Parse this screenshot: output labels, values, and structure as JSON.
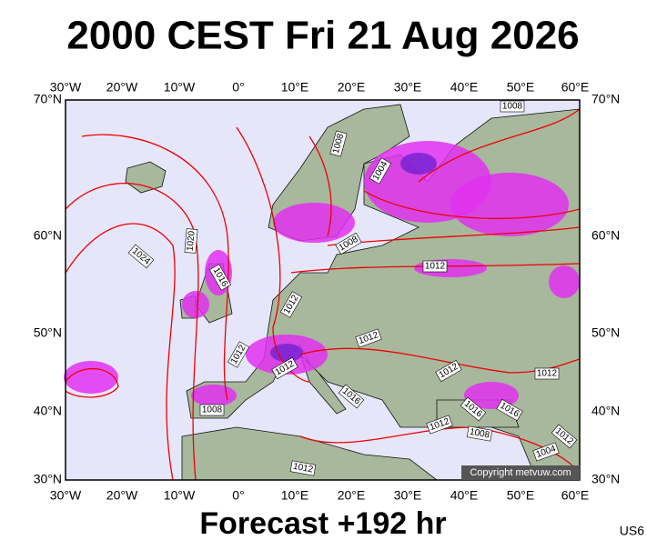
{
  "header": {
    "title": "2000 CEST Fri 21 Aug 2026"
  },
  "map": {
    "lon_labels": [
      "30°W",
      "20°W",
      "10°W",
      "0°",
      "10°E",
      "20°E",
      "30°E",
      "40°E",
      "50°E",
      "60°E"
    ],
    "lat_labels": [
      "70°N",
      "60°N",
      "50°N",
      "40°N",
      "30°N"
    ],
    "isobar_labels": [
      "1008",
      "1008",
      "1004",
      "1020",
      "1024",
      "1016",
      "1012",
      "1008",
      "1012",
      "1012",
      "1012",
      "1012",
      "1012",
      "1012",
      "1016",
      "1008",
      "1016",
      "1016",
      "1012",
      "1008",
      "1012",
      "1004",
      "1012"
    ],
    "copyright": "Copyright metvuw.com"
  },
  "footer": {
    "forecast": "Forecast +192 hr",
    "code": "US6"
  }
}
